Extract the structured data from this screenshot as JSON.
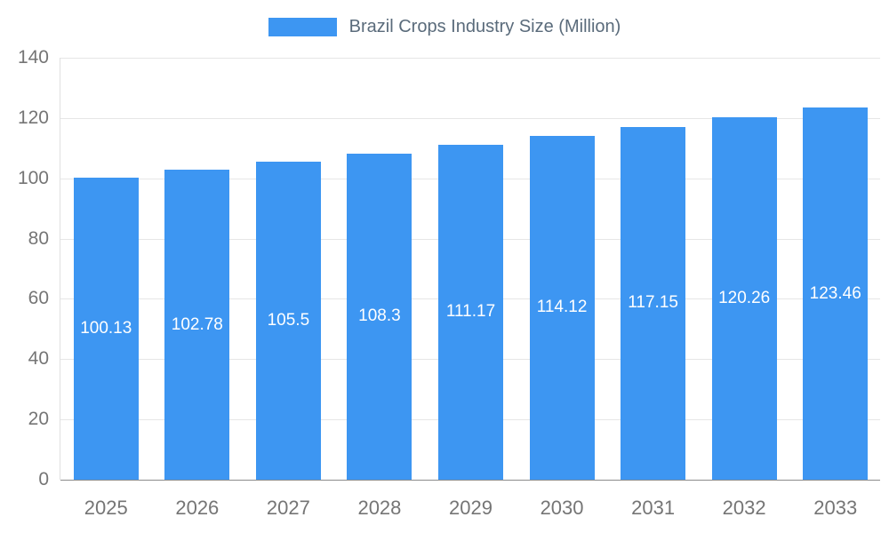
{
  "chart_data": {
    "type": "bar",
    "title": "Brazil Crops Industry Size (Million)",
    "categories": [
      "2025",
      "2026",
      "2027",
      "2028",
      "2029",
      "2030",
      "2031",
      "2032",
      "2033"
    ],
    "values": [
      100.13,
      102.78,
      105.5,
      108.3,
      111.17,
      114.12,
      117.15,
      120.26,
      123.46
    ],
    "value_labels": [
      "100.13",
      "102.78",
      "105.5",
      "108.3",
      "111.17",
      "114.12",
      "117.15",
      "120.26",
      "123.46"
    ],
    "xlabel": "",
    "ylabel": "",
    "ylim": [
      0,
      140
    ],
    "yticks": [
      0,
      20,
      40,
      60,
      80,
      100,
      120,
      140
    ],
    "grid": true,
    "legend_position": "top-center",
    "colors": {
      "bar": "#3D96F2",
      "bar_value_label": "#FFFFFF",
      "axis_text": "#757575",
      "gridline": "#E6E6E6",
      "legend_title_text": "#5A6B7B"
    }
  }
}
